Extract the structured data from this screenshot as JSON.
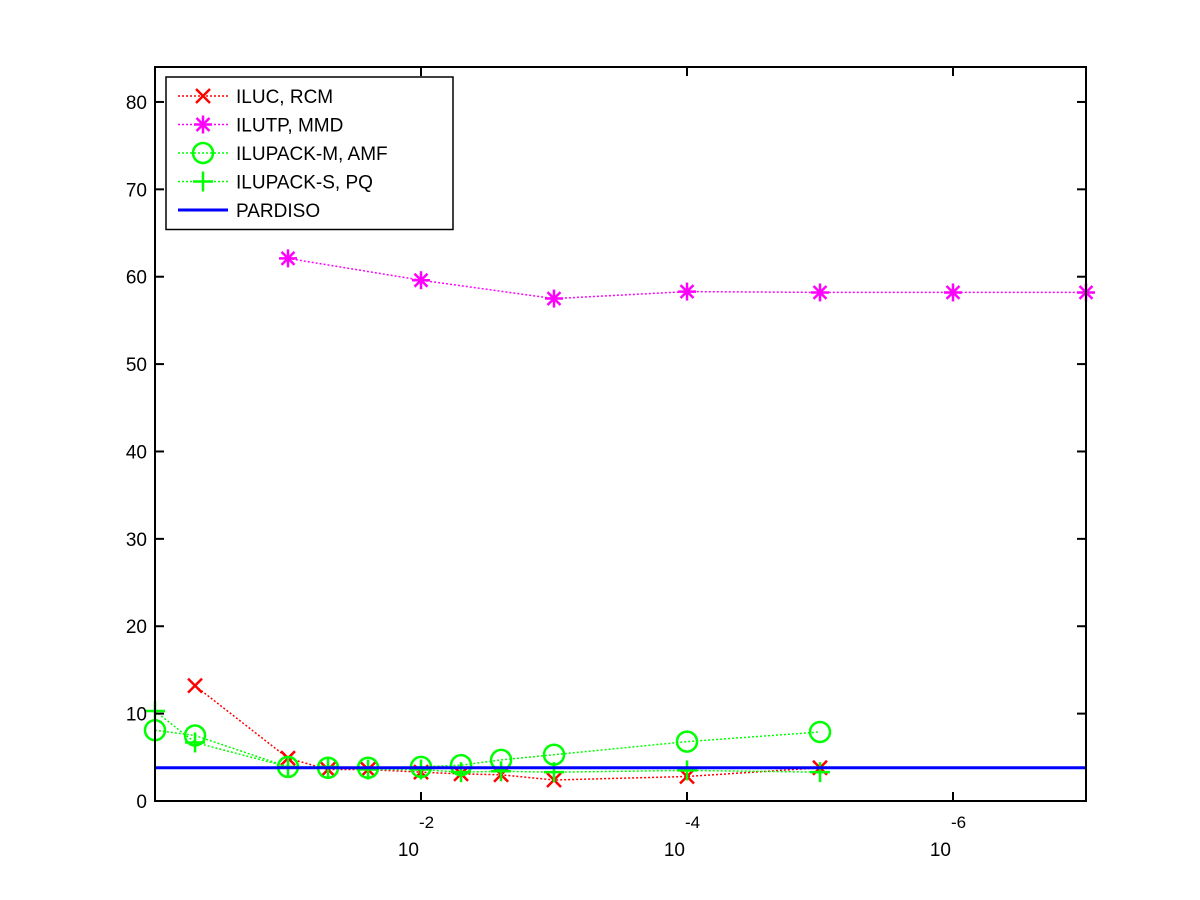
{
  "chart_data": {
    "type": "line",
    "title": "",
    "xlabel": "",
    "ylabel": "",
    "x_scale": "log",
    "x_reversed": true,
    "xlim": [
      1,
      1e-07
    ],
    "ylim": [
      0,
      84
    ],
    "yticks": [
      0,
      10,
      20,
      30,
      40,
      50,
      60,
      70,
      80
    ],
    "xticks": [
      {
        "value": 0.01,
        "base": "10",
        "exponent": "-2"
      },
      {
        "value": 0.0001,
        "base": "10",
        "exponent": "-4"
      },
      {
        "value": 1e-06,
        "base": "10",
        "exponent": "-6"
      }
    ],
    "grid": false,
    "legend_position": "top-left",
    "series": [
      {
        "name": "ILUC, RCM",
        "color": "#ff0000",
        "marker": "x",
        "line_style": "dotted",
        "points": [
          {
            "x": 0.5,
            "y": 13.2
          },
          {
            "x": 0.1,
            "y": 4.9
          },
          {
            "x": 0.05,
            "y": 3.6
          },
          {
            "x": 0.025,
            "y": 3.6
          },
          {
            "x": 0.01,
            "y": 3.3
          },
          {
            "x": 0.005,
            "y": 3.1
          },
          {
            "x": 0.0025,
            "y": 3.0
          },
          {
            "x": 0.001,
            "y": 2.4
          },
          {
            "x": 0.0001,
            "y": 2.8
          },
          {
            "x": 1e-05,
            "y": 3.8
          }
        ]
      },
      {
        "name": "ILUTP, MMD",
        "color": "#ff00ff",
        "marker": "asterisk",
        "line_style": "dotted",
        "points": [
          {
            "x": 0.1,
            "y": 62.1
          },
          {
            "x": 0.01,
            "y": 59.6
          },
          {
            "x": 0.001,
            "y": 57.5
          },
          {
            "x": 0.0001,
            "y": 58.3
          },
          {
            "x": 1e-05,
            "y": 58.2
          },
          {
            "x": 1e-06,
            "y": 58.2
          },
          {
            "x": 1e-07,
            "y": 58.2
          }
        ]
      },
      {
        "name": "ILUPACK-M, AMF",
        "color": "#00ff00",
        "marker": "circle",
        "line_style": "dotted",
        "points": [
          {
            "x": 1,
            "y": 8.1
          },
          {
            "x": 0.5,
            "y": 7.5
          },
          {
            "x": 0.1,
            "y": 3.9
          },
          {
            "x": 0.05,
            "y": 3.8
          },
          {
            "x": 0.025,
            "y": 3.8
          },
          {
            "x": 0.01,
            "y": 3.9
          },
          {
            "x": 0.005,
            "y": 4.1
          },
          {
            "x": 0.0025,
            "y": 4.7
          },
          {
            "x": 0.001,
            "y": 5.3
          },
          {
            "x": 0.0001,
            "y": 6.8
          },
          {
            "x": 1e-05,
            "y": 7.9
          }
        ]
      },
      {
        "name": "ILUPACK-S, PQ",
        "color": "#00ff00",
        "marker": "plus",
        "line_style": "dotted",
        "points": [
          {
            "x": 1,
            "y": 10.3
          },
          {
            "x": 0.5,
            "y": 6.7
          },
          {
            "x": 0.1,
            "y": 3.9
          },
          {
            "x": 0.05,
            "y": 3.9
          },
          {
            "x": 0.025,
            "y": 3.6
          },
          {
            "x": 0.01,
            "y": 3.6
          },
          {
            "x": 0.005,
            "y": 3.3
          },
          {
            "x": 0.0025,
            "y": 3.4
          },
          {
            "x": 0.001,
            "y": 3.3
          },
          {
            "x": 0.0001,
            "y": 3.5
          },
          {
            "x": 1e-05,
            "y": 3.3
          }
        ]
      },
      {
        "name": "PARDISO",
        "color": "#0000ff",
        "marker": "none",
        "line_style": "solid",
        "points": [
          {
            "x": 1,
            "y": 3.8
          },
          {
            "x": 1e-07,
            "y": 3.8
          }
        ]
      }
    ]
  }
}
